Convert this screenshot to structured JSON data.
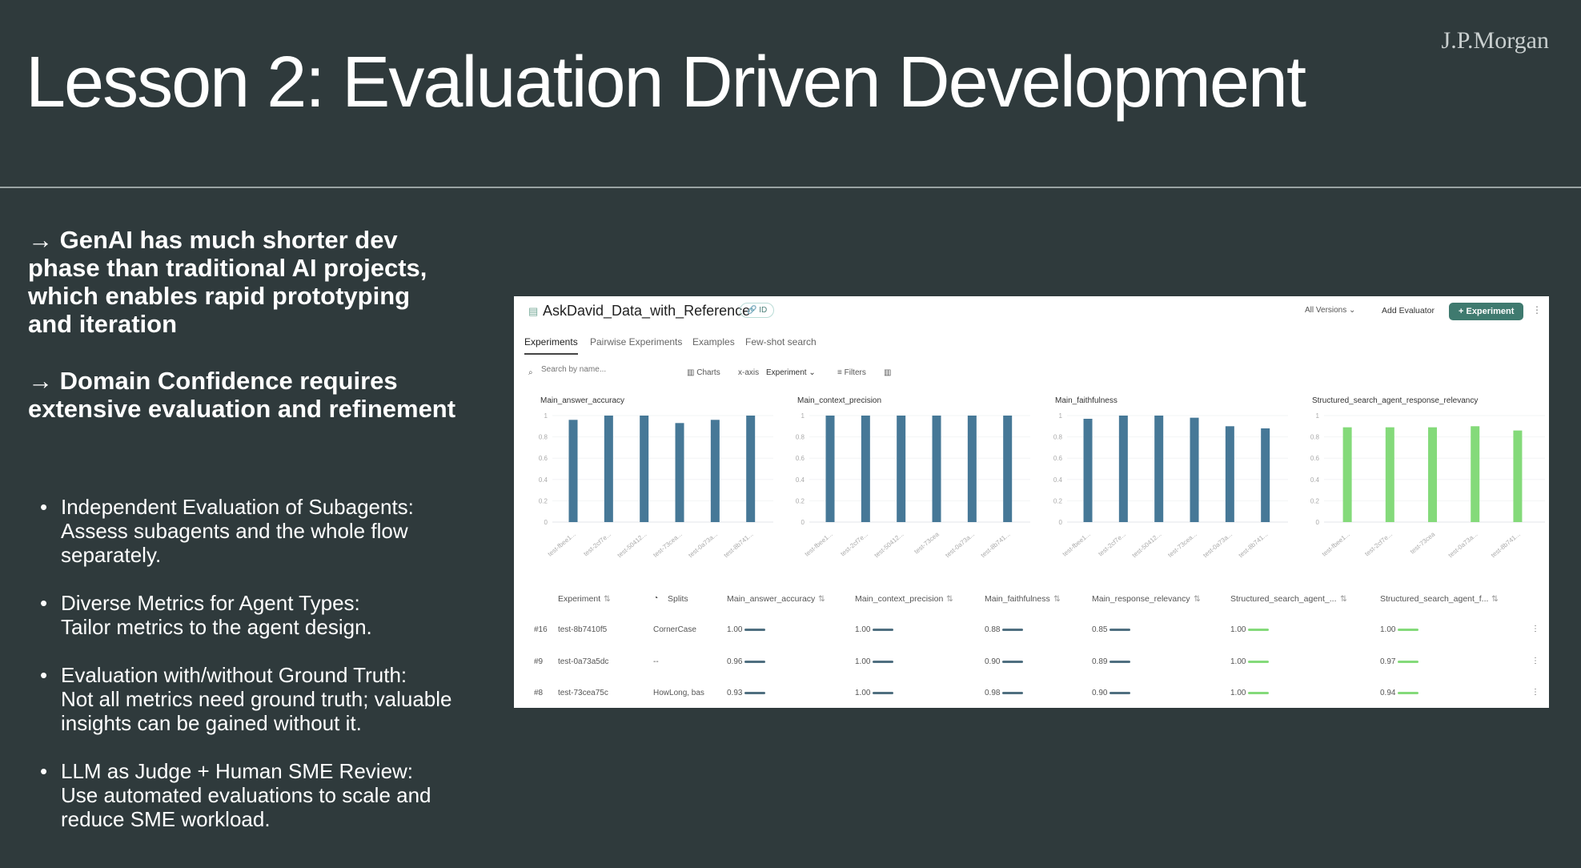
{
  "logo": "J.P.Morgan",
  "title": "Lesson 2: Evaluation Driven Development",
  "leads": [
    "→ GenAI has much shorter dev phase than traditional AI projects, which enables rapid prototyping and iteration",
    "→ Domain Confidence requires extensive evaluation and refinement"
  ],
  "bullets": [
    {
      "l1": "Independent Evaluation of Subagents:",
      "l2": "Assess subagents  and the whole flow separately."
    },
    {
      "l1": "Diverse Metrics for Agent Types:",
      "l2": "Tailor metrics to the agent design."
    },
    {
      "l1": "Evaluation with/without Ground Truth:",
      "l2": "Not all metrics need ground truth; valuable insights can be gained without it."
    },
    {
      "l1": "LLM as Judge + Human SME Review:",
      "l2": "Use automated evaluations to scale and reduce SME workload."
    }
  ],
  "app": {
    "dataset": "AskDavid_Data_with_Reference",
    "id_badge": "ID",
    "all_versions": "All Versions",
    "add_evaluator": "Add Evaluator",
    "experiment_btn": "+ Experiment",
    "tabs": [
      "Experiments",
      "Pairwise Experiments",
      "Examples",
      "Few-shot search"
    ],
    "search_placeholder": "Search by name...",
    "charts": "Charts",
    "xaxis_label": "x-axis",
    "xaxis_value": "Experiment",
    "filters": "Filters",
    "columns": [
      "Experiment",
      "Splits",
      "Main_answer_accuracy",
      "Main_context_precision",
      "Main_faithfulness",
      "Main_response_relevancy",
      "Structured_search_agent_...",
      "Structured_search_agent_f..."
    ],
    "rows": [
      {
        "num": "#16",
        "name": "test-8b7410f5",
        "split": "CornerCase",
        "vals": [
          "1.00",
          "1.00",
          "0.88",
          "0.85",
          "1.00",
          "1.00"
        ]
      },
      {
        "num": "#9",
        "name": "test-0a73a5dc",
        "split": "--",
        "vals": [
          "0.96",
          "1.00",
          "0.90",
          "0.89",
          "1.00",
          "0.97"
        ]
      },
      {
        "num": "#8",
        "name": "test-73cea75c",
        "split": "HowLong, bas",
        "vals": [
          "0.93",
          "1.00",
          "0.98",
          "0.90",
          "1.00",
          "0.94"
        ]
      }
    ],
    "colors": {
      "blue": "#467897",
      "green": "#84da7a",
      "accent": "#3f7a6f"
    }
  },
  "chart_data": [
    {
      "type": "bar",
      "title": "Main_answer_accuracy",
      "categories": [
        "test-fbee1...",
        "test-2cf7e...",
        "test-50412...",
        "test-73cea...",
        "test-0a73a...",
        "test-8b741..."
      ],
      "values": [
        0.96,
        1,
        1,
        0.93,
        0.96,
        1
      ],
      "ylim": [
        0,
        1
      ],
      "yticks": [
        "0",
        "0.2",
        "0.4",
        "0.6",
        "0.8",
        "1"
      ],
      "color": "#467897"
    },
    {
      "type": "bar",
      "title": "Main_context_precision",
      "categories": [
        "test-fbee1...",
        "test-2cf7e...",
        "test-50412...",
        "test-73cea",
        "test-0a73a...",
        "test-8b741..."
      ],
      "values": [
        1,
        1,
        1,
        1,
        1,
        1
      ],
      "ylim": [
        0,
        1
      ],
      "yticks": [
        "0",
        "0.2",
        "0.4",
        "0.6",
        "0.8",
        "1"
      ],
      "color": "#467897"
    },
    {
      "type": "bar",
      "title": "Main_faithfulness",
      "categories": [
        "test-fbee1...",
        "test-2cf7e...",
        "test-50412...",
        "test-73cea...",
        "test-0a73a...",
        "test-8b741..."
      ],
      "values": [
        0.97,
        1,
        1,
        0.98,
        0.9,
        0.88
      ],
      "ylim": [
        0,
        1
      ],
      "yticks": [
        "0",
        "0.2",
        "0.4",
        "0.6",
        "0.8",
        "1"
      ],
      "color": "#467897"
    },
    {
      "type": "bar",
      "title": "Structured_search_agent_response_relevancy",
      "categories": [
        "test-fbee1...",
        "test-2cf7e...",
        "test-73cea",
        "test-0a73a...",
        "test-8b741..."
      ],
      "values": [
        0.89,
        0.89,
        0.89,
        0.9,
        0.86
      ],
      "ylim": [
        0,
        1
      ],
      "yticks": [
        "0",
        "0.2",
        "0.4",
        "0.6",
        "0.8",
        "1"
      ],
      "color": "#84da7a"
    }
  ]
}
